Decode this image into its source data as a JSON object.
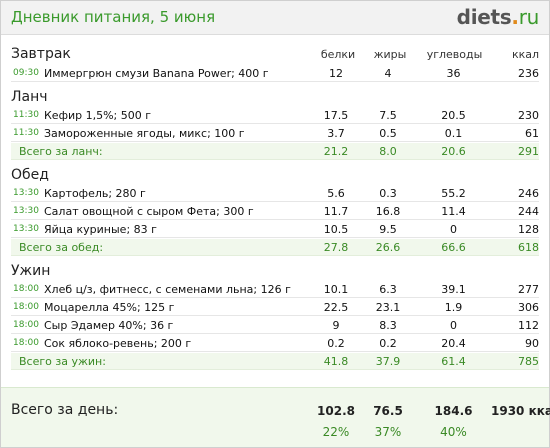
{
  "header": {
    "title": "Дневник питания, 5 июня",
    "logo_main": "diets",
    "logo_dot": ".",
    "logo_tld": "ru"
  },
  "columns": {
    "protein": "белки",
    "fat": "жиры",
    "carbs": "углеводы",
    "kcal": "ккал"
  },
  "sections": [
    {
      "name": "Завтрак",
      "items": [
        {
          "time": "09:30",
          "name": "Иммергрюн смузи Banana Power; 400 г",
          "p": "12",
          "f": "4",
          "c": "36",
          "k": "236"
        }
      ]
    },
    {
      "name": "Ланч",
      "items": [
        {
          "time": "11:30",
          "name": "Кефир 1,5%; 500 г",
          "p": "17.5",
          "f": "7.5",
          "c": "20.5",
          "k": "230"
        },
        {
          "time": "11:30",
          "name": "Замороженные ягоды, микс; 100 г",
          "p": "3.7",
          "f": "0.5",
          "c": "0.1",
          "k": "61"
        }
      ],
      "total": {
        "label": "Всего за ланч:",
        "p": "21.2",
        "f": "8.0",
        "c": "20.6",
        "k": "291"
      }
    },
    {
      "name": "Обед",
      "items": [
        {
          "time": "13:30",
          "name": "Картофель; 280 г",
          "p": "5.6",
          "f": "0.3",
          "c": "55.2",
          "k": "246"
        },
        {
          "time": "13:30",
          "name": "Салат овощной с сыром Фета; 300 г",
          "p": "11.7",
          "f": "16.8",
          "c": "11.4",
          "k": "244"
        },
        {
          "time": "13:30",
          "name": "Яйца куриные; 83 г",
          "p": "10.5",
          "f": "9.5",
          "c": "0",
          "k": "128"
        }
      ],
      "total": {
        "label": "Всего за обед:",
        "p": "27.8",
        "f": "26.6",
        "c": "66.6",
        "k": "618"
      }
    },
    {
      "name": "Ужин",
      "items": [
        {
          "time": "18:00",
          "name": "Хлеб ц/з, фитнесс, с семенами льна; 126 г",
          "p": "10.1",
          "f": "6.3",
          "c": "39.1",
          "k": "277"
        },
        {
          "time": "18:00",
          "name": "Моцарелла 45%; 125 г",
          "p": "22.5",
          "f": "23.1",
          "c": "1.9",
          "k": "306"
        },
        {
          "time": "18:00",
          "name": "Сыр Эдамер 40%; 36 г",
          "p": "9",
          "f": "8.3",
          "c": "0",
          "k": "112"
        },
        {
          "time": "18:00",
          "name": "Сок яблоко-ревень; 200 г",
          "p": "0.2",
          "f": "0.2",
          "c": "20.4",
          "k": "90"
        }
      ],
      "total": {
        "label": "Всего за ужин:",
        "p": "41.8",
        "f": "37.9",
        "c": "61.4",
        "k": "785"
      }
    }
  ],
  "day_total": {
    "label": "Всего за день:",
    "p": "102.8",
    "f": "76.5",
    "c": "184.6",
    "k": "1930 ккал",
    "p_pct": "22%",
    "f_pct": "37%",
    "c_pct": "40%"
  }
}
